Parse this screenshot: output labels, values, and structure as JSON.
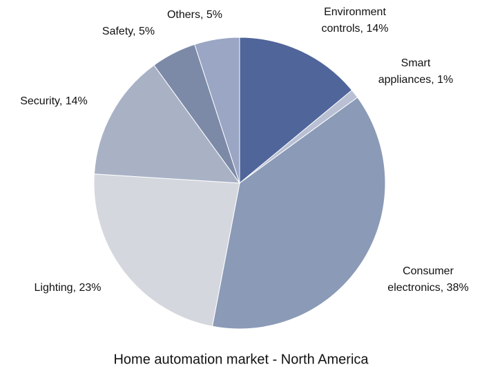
{
  "chart_data": {
    "type": "pie",
    "title": "Home automation market - North America",
    "categories": [
      "Environment controls",
      "Smart appliances",
      "Consumer electronics",
      "Lighting",
      "Security",
      "Safety",
      "Others"
    ],
    "values": [
      14,
      1,
      38,
      23,
      14,
      5,
      5
    ],
    "value_labels": [
      [
        "Environment",
        "controls, 14%"
      ],
      [
        "Smart",
        "appliances, 1%"
      ],
      [
        "Consumer",
        "electronics, 38%"
      ],
      [
        "Lighting, 23%"
      ],
      [
        "Security, 14%"
      ],
      [
        "Safety, 5%"
      ],
      [
        "Others, 5%"
      ]
    ],
    "colors": [
      "#50659a",
      "#b9c0d3",
      "#8b9ab6",
      "#d5d7de",
      "#a9b2c5",
      "#7c8aa8",
      "#9aa6c4"
    ]
  }
}
